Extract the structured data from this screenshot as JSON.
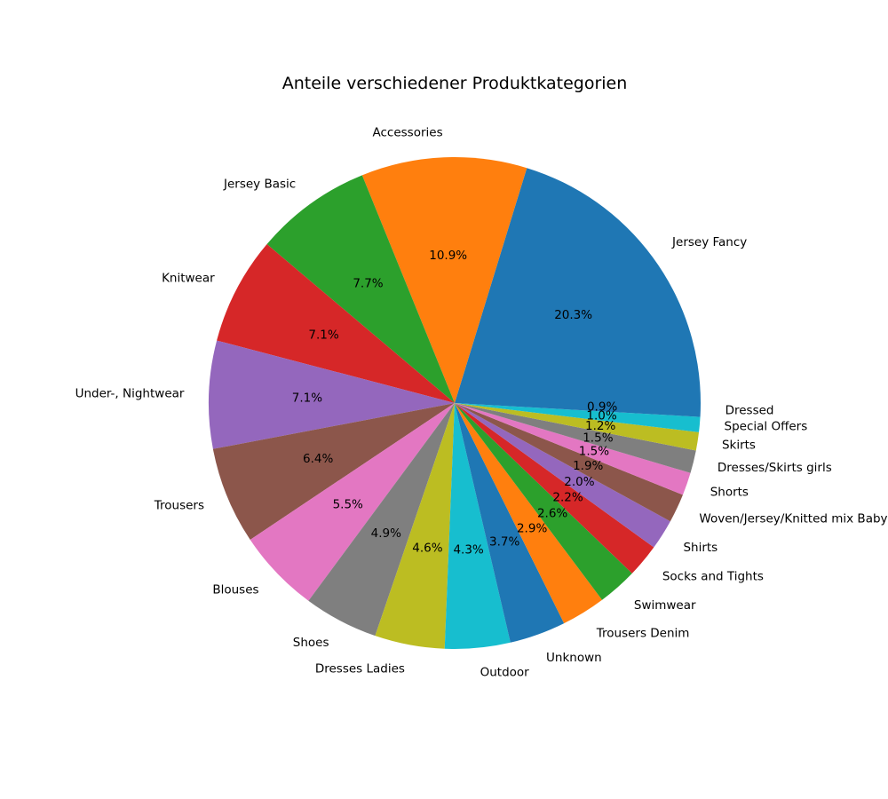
{
  "chart_data": {
    "type": "pie",
    "title": "Anteile verschiedener Produktkategorien",
    "start_angle_deg": 0,
    "direction": "counterclockwise",
    "slices": [
      {
        "label": "Jersey Fancy",
        "value": 20.3,
        "pct_label": "20.3%",
        "color": "#1f77b4"
      },
      {
        "label": "Accessories",
        "value": 10.9,
        "pct_label": "10.9%",
        "color": "#ff7f0e"
      },
      {
        "label": "Jersey Basic",
        "value": 7.7,
        "pct_label": "7.7%",
        "color": "#2ca02c"
      },
      {
        "label": "Knitwear",
        "value": 7.1,
        "pct_label": "7.1%",
        "color": "#d62728"
      },
      {
        "label": "Under-, Nightwear",
        "value": 7.1,
        "pct_label": "7.1%",
        "color": "#9467bd"
      },
      {
        "label": "Trousers",
        "value": 6.4,
        "pct_label": "6.4%",
        "color": "#8c564b"
      },
      {
        "label": "Blouses",
        "value": 5.5,
        "pct_label": "5.5%",
        "color": "#e377c2"
      },
      {
        "label": "Shoes",
        "value": 4.9,
        "pct_label": "4.9%",
        "color": "#7f7f7f"
      },
      {
        "label": "Dresses Ladies",
        "value": 4.6,
        "pct_label": "4.6%",
        "color": "#bcbd22"
      },
      {
        "label": "Outdoor",
        "value": 4.3,
        "pct_label": "4.3%",
        "color": "#17becf"
      },
      {
        "label": "Unknown",
        "value": 3.7,
        "pct_label": "3.7%",
        "color": "#1f77b4"
      },
      {
        "label": "Trousers Denim",
        "value": 2.9,
        "pct_label": "2.9%",
        "color": "#ff7f0e"
      },
      {
        "label": "Swimwear",
        "value": 2.6,
        "pct_label": "2.6%",
        "color": "#2ca02c"
      },
      {
        "label": "Socks and Tights",
        "value": 2.2,
        "pct_label": "2.2%",
        "color": "#d62728"
      },
      {
        "label": "Shirts",
        "value": 2.0,
        "pct_label": "2.0%",
        "color": "#9467bd"
      },
      {
        "label": "Woven/Jersey/Knitted mix Baby",
        "value": 1.9,
        "pct_label": "1.9%",
        "color": "#8c564b"
      },
      {
        "label": "Shorts",
        "value": 1.5,
        "pct_label": "1.5%",
        "color": "#e377c2"
      },
      {
        "label": "Dresses/Skirts girls",
        "value": 1.5,
        "pct_label": "1.5%",
        "color": "#7f7f7f"
      },
      {
        "label": "Skirts",
        "value": 1.2,
        "pct_label": "1.2%",
        "color": "#bcbd22"
      },
      {
        "label": "Special Offers",
        "value": 1.0,
        "pct_label": "1.0%",
        "color": "#17becf"
      },
      {
        "label": "Dressed",
        "value": 0.9,
        "pct_label": "0.9%",
        "color": "#1f77b4"
      }
    ]
  }
}
